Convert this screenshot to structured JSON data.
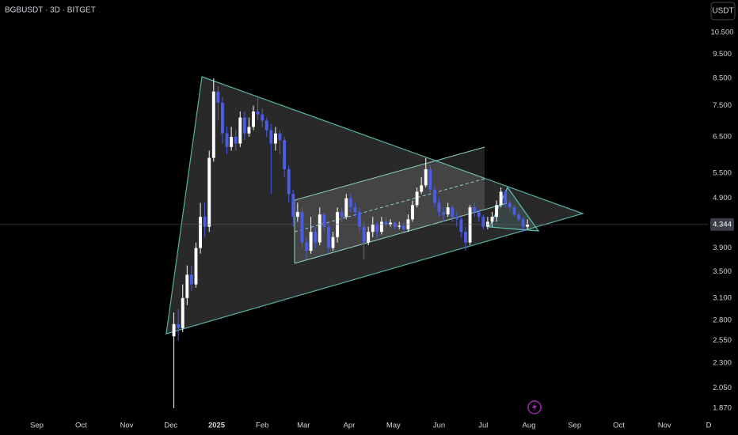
{
  "chart_data": {
    "type": "candlestick",
    "title": "BGBUSDT · 3D · BITGET",
    "currency_button": "USDT",
    "log_scale": true,
    "grid": false,
    "up_color": "#ffffff",
    "down_color": "#4b5ce6",
    "xlim": [
      -25,
      456
    ],
    "xticks": [
      {
        "value": 0,
        "label": "Sep"
      },
      {
        "value": 30,
        "label": "Oct"
      },
      {
        "value": 61,
        "label": "Nov"
      },
      {
        "value": 91,
        "label": "Dec"
      },
      {
        "value": 122,
        "label": "2025"
      },
      {
        "value": 153,
        "label": "Feb"
      },
      {
        "value": 181,
        "label": "Mar"
      },
      {
        "value": 212,
        "label": "Apr"
      },
      {
        "value": 242,
        "label": "May"
      },
      {
        "value": 273,
        "label": "Jun"
      },
      {
        "value": 303,
        "label": "Jul"
      },
      {
        "value": 334,
        "label": "Aug"
      },
      {
        "value": 365,
        "label": "Sep"
      },
      {
        "value": 395,
        "label": "Oct"
      },
      {
        "value": 426,
        "label": "Nov"
      },
      {
        "value": 456,
        "label": "D"
      }
    ],
    "ylim": [
      1.79,
      12.18
    ],
    "yticks": [
      {
        "value": 10.5,
        "label": "10.500"
      },
      {
        "value": 9.5,
        "label": "9.500"
      },
      {
        "value": 8.5,
        "label": "8.500"
      },
      {
        "value": 7.5,
        "label": "7.500"
      },
      {
        "value": 6.5,
        "label": "6.500"
      },
      {
        "value": 5.5,
        "label": "5.500"
      },
      {
        "value": 4.9,
        "label": "4.900"
      },
      {
        "value": 3.9,
        "label": "3.900"
      },
      {
        "value": 3.5,
        "label": "3.500"
      },
      {
        "value": 3.1,
        "label": "3.100"
      },
      {
        "value": 2.8,
        "label": "2.800"
      },
      {
        "value": 2.55,
        "label": "2.550"
      },
      {
        "value": 2.3,
        "label": "2.300"
      },
      {
        "value": 2.05,
        "label": "2.050"
      },
      {
        "value": 1.87,
        "label": "1.870"
      }
    ],
    "last_price": 4.344,
    "x": [
      93,
      96,
      99,
      102,
      105,
      108,
      111,
      114,
      117,
      120,
      123,
      126,
      129,
      132,
      135,
      138,
      141,
      144,
      147,
      150,
      153,
      156,
      159,
      162,
      165,
      168,
      171,
      174,
      177,
      180,
      183,
      186,
      189,
      192,
      195,
      198,
      201,
      204,
      207,
      210,
      213,
      216,
      219,
      222,
      225,
      228,
      231,
      234,
      237,
      240,
      243,
      246,
      249,
      252,
      255,
      258,
      261,
      264,
      267,
      270,
      273,
      276,
      279,
      282,
      285,
      288,
      291,
      294,
      297,
      300,
      303,
      306,
      309,
      312,
      315,
      318,
      321,
      324,
      327,
      330,
      333
    ],
    "open": [
      2.6,
      2.75,
      2.7,
      3.1,
      3.45,
      3.3,
      3.9,
      4.5,
      4.3,
      5.9,
      8.0,
      7.6,
      6.6,
      6.2,
      6.5,
      6.3,
      7.1,
      6.6,
      6.8,
      7.3,
      7.2,
      7.0,
      6.7,
      6.3,
      6.6,
      6.4,
      5.6,
      5.0,
      4.5,
      4.6,
      4.0,
      3.85,
      4.2,
      4.0,
      4.55,
      4.3,
      3.9,
      4.1,
      4.6,
      4.5,
      4.9,
      4.7,
      4.6,
      4.3,
      4.0,
      4.2,
      4.35,
      4.2,
      4.4,
      4.35,
      4.38,
      4.3,
      4.32,
      4.25,
      4.45,
      4.75,
      5.05,
      5.2,
      5.6,
      5.1,
      4.8,
      4.6,
      4.55,
      4.7,
      4.5,
      4.45,
      4.2,
      4.0,
      4.7,
      4.6,
      4.5,
      4.3,
      4.4,
      4.5,
      4.75,
      5.05,
      4.8,
      4.7,
      4.55,
      4.45,
      4.3
    ],
    "high": [
      2.9,
      2.95,
      3.3,
      3.6,
      3.6,
      4.0,
      4.8,
      4.8,
      6.1,
      8.5,
      8.2,
      7.8,
      6.8,
      6.8,
      6.7,
      7.3,
      7.3,
      7.1,
      7.5,
      7.8,
      7.4,
      7.1,
      6.9,
      6.8,
      6.7,
      6.5,
      5.7,
      5.1,
      4.8,
      4.7,
      4.1,
      4.5,
      4.3,
      4.7,
      4.6,
      4.4,
      4.2,
      4.7,
      4.7,
      5.0,
      5.0,
      4.8,
      4.7,
      4.4,
      4.3,
      4.5,
      4.4,
      4.5,
      4.5,
      4.45,
      4.4,
      4.4,
      4.4,
      4.55,
      4.85,
      5.15,
      5.4,
      5.9,
      5.7,
      5.2,
      4.9,
      4.7,
      4.8,
      4.75,
      4.6,
      4.5,
      4.3,
      4.75,
      4.8,
      4.65,
      4.55,
      4.5,
      4.6,
      4.85,
      5.15,
      5.1,
      4.85,
      4.75,
      4.6,
      4.5,
      4.45
    ],
    "low": [
      1.87,
      2.55,
      2.65,
      3.0,
      3.2,
      3.25,
      3.8,
      4.1,
      4.2,
      5.8,
      7.0,
      6.3,
      6.0,
      6.1,
      6.1,
      6.2,
      6.4,
      6.5,
      6.7,
      7.0,
      6.8,
      6.5,
      5.0,
      6.1,
      6.0,
      5.4,
      4.8,
      4.3,
      4.4,
      3.9,
      3.7,
      3.8,
      3.9,
      3.95,
      4.2,
      3.8,
      3.85,
      4.0,
      4.4,
      4.45,
      4.6,
      4.5,
      4.2,
      3.7,
      3.95,
      4.1,
      4.1,
      4.15,
      4.3,
      4.3,
      4.25,
      4.25,
      4.2,
      4.2,
      4.4,
      4.7,
      5.0,
      5.15,
      5.0,
      4.7,
      4.5,
      4.4,
      4.5,
      4.4,
      4.3,
      4.1,
      3.85,
      3.95,
      4.5,
      4.4,
      4.25,
      4.25,
      4.3,
      4.4,
      4.7,
      4.7,
      4.6,
      4.5,
      4.4,
      4.2,
      4.25
    ],
    "close": [
      2.75,
      2.7,
      3.1,
      3.45,
      3.3,
      3.9,
      4.5,
      4.3,
      5.9,
      8.0,
      7.6,
      6.6,
      6.2,
      6.5,
      6.3,
      7.1,
      6.6,
      6.8,
      7.3,
      7.2,
      7.0,
      6.7,
      6.3,
      6.6,
      6.4,
      5.6,
      5.0,
      4.5,
      4.6,
      4.0,
      3.85,
      4.2,
      4.0,
      4.55,
      4.3,
      3.9,
      4.1,
      4.6,
      4.5,
      4.9,
      4.7,
      4.6,
      4.3,
      4.0,
      4.2,
      4.35,
      4.2,
      4.4,
      4.35,
      4.38,
      4.3,
      4.32,
      4.25,
      4.45,
      4.75,
      5.05,
      5.2,
      5.6,
      5.1,
      4.8,
      4.6,
      4.55,
      4.7,
      4.5,
      4.45,
      4.2,
      4.0,
      4.7,
      4.6,
      4.5,
      4.3,
      4.4,
      4.5,
      4.75,
      5.05,
      4.8,
      4.7,
      4.55,
      4.45,
      4.3,
      4.344
    ]
  }
}
